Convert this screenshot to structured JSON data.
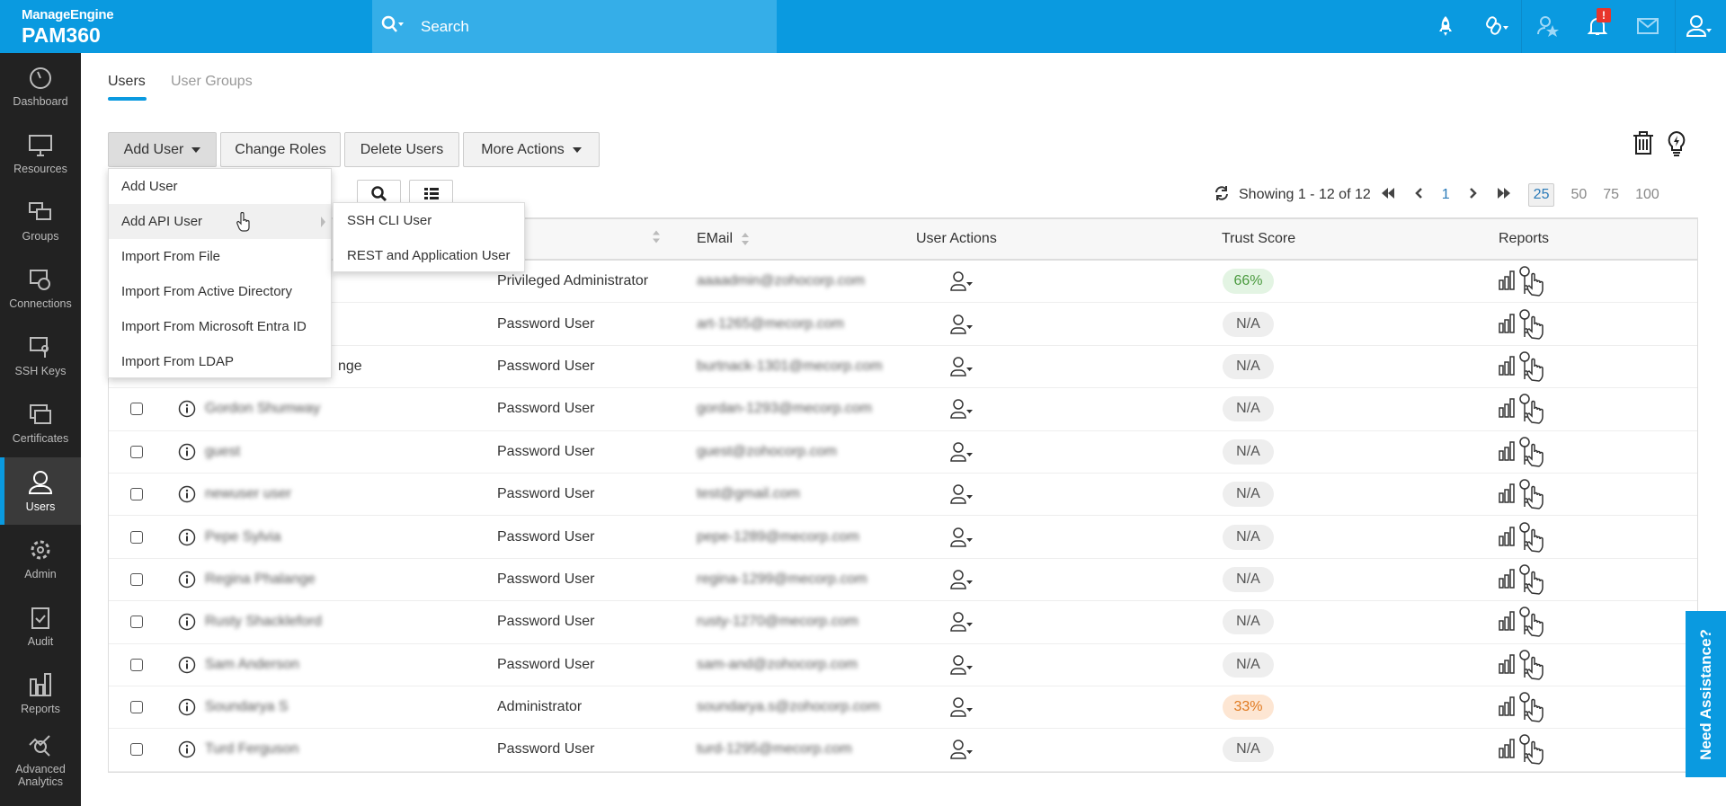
{
  "header": {
    "brand": "ManageEngine",
    "product": "PAM360",
    "search_placeholder": "Search",
    "notification_badge": "!"
  },
  "sidebar": {
    "items": [
      {
        "label": "Dashboard",
        "icon": "dashboard-icon"
      },
      {
        "label": "Resources",
        "icon": "monitor-icon"
      },
      {
        "label": "Groups",
        "icon": "groups-icon"
      },
      {
        "label": "Connections",
        "icon": "connections-icon"
      },
      {
        "label": "SSH Keys",
        "icon": "ssh-key-icon"
      },
      {
        "label": "Certificates",
        "icon": "certificate-icon"
      },
      {
        "label": "Users",
        "icon": "user-icon",
        "active": true
      },
      {
        "label": "Admin",
        "icon": "gear-icon"
      },
      {
        "label": "Audit",
        "icon": "clipboard-check-icon"
      },
      {
        "label": "Reports",
        "icon": "bar-chart-icon"
      },
      {
        "label": "Advanced Analytics",
        "icon": "analytics-icon"
      }
    ]
  },
  "tabs": {
    "users": "Users",
    "user_groups": "User Groups"
  },
  "toolbar": {
    "add_user": "Add User",
    "change_roles": "Change Roles",
    "delete_users": "Delete Users",
    "more_actions": "More Actions"
  },
  "add_user_menu": {
    "items": [
      "Add User",
      "Add API User",
      "Import From File",
      "Import From Active Directory",
      "Import From Microsoft Entra ID",
      "Import From LDAP"
    ],
    "submenu": [
      "SSH CLI User",
      "REST and Application User"
    ]
  },
  "pagination": {
    "showing": "Showing 1 - 12 of 12",
    "page": "1",
    "page_sizes": [
      "25",
      "50",
      "75",
      "100"
    ],
    "selected_size": "25"
  },
  "table": {
    "columns": {
      "email": "EMail",
      "user_actions": "User Actions",
      "trust_score": "Trust Score",
      "reports": "Reports"
    },
    "rows": [
      {
        "name": "",
        "role": "Privileged Administrator",
        "email": "aaaadmin@zohocorp.com",
        "trust": "66%",
        "trust_level": "good"
      },
      {
        "name": "",
        "role": "Password User",
        "email": "art-1265@mecorp.com",
        "trust": "N/A"
      },
      {
        "name": "nge",
        "role": "Password User",
        "email": "burtnack-1301@mecorp.com",
        "trust": "N/A"
      },
      {
        "name": "Gordon Shumway",
        "role": "Password User",
        "email": "gordan-1293@mecorp.com",
        "trust": "N/A"
      },
      {
        "name": "guest",
        "role": "Password User",
        "email": "guest@zohocorp.com",
        "trust": "N/A"
      },
      {
        "name": "newuser user",
        "role": "Password User",
        "email": "test@gmail.com",
        "trust": "N/A"
      },
      {
        "name": "Pepe Sylvia",
        "role": "Password User",
        "email": "pepe-1289@mecorp.com",
        "trust": "N/A"
      },
      {
        "name": "Regina Phalange",
        "role": "Password User",
        "email": "regina-1299@mecorp.com",
        "trust": "N/A"
      },
      {
        "name": "Rusty Shackleford",
        "role": "Password User",
        "email": "rusty-1270@mecorp.com",
        "trust": "N/A"
      },
      {
        "name": "Sam Anderson",
        "role": "Password User",
        "email": "sam-and@zohocorp.com",
        "trust": "N/A"
      },
      {
        "name": "Soundarya S",
        "role": "Administrator",
        "email": "soundarya.s@zohocorp.com",
        "trust": "33%",
        "trust_level": "warn"
      },
      {
        "name": "Turd Ferguson",
        "role": "Password User",
        "email": "turd-1295@mecorp.com",
        "trust": "N/A"
      }
    ]
  },
  "need_assistance": "Need Assistance?",
  "colors": {
    "brand": "#0a9ae0",
    "sidebar": "#222222",
    "trust_good_bg": "#e3f4e3",
    "trust_good_fg": "#4a9a3e",
    "trust_warn_bg": "#fde6d3",
    "trust_warn_fg": "#e07a20",
    "alert": "#e8352b"
  }
}
